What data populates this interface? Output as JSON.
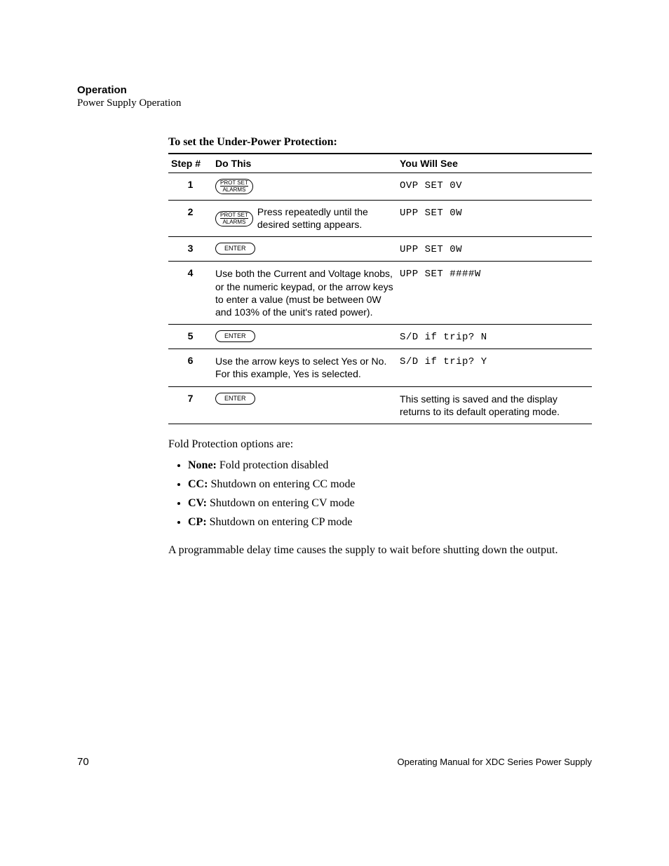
{
  "header": {
    "section_title": "Operation",
    "section_subtitle": "Power Supply Operation"
  },
  "procedure": {
    "title": "To set the Under-Power Protection:",
    "columns": {
      "step": "Step #",
      "do": "Do This",
      "see": "You Will See"
    },
    "key_labels": {
      "prot_set_top": "PROT SET",
      "prot_set_bottom": "ALARMS",
      "enter": "ENTER"
    },
    "rows": [
      {
        "step": "1",
        "see": "OVP SET 0V"
      },
      {
        "step": "2",
        "after_text": "Press repeatedly until the desired setting appears.",
        "see": "UPP SET 0W"
      },
      {
        "step": "3",
        "see": "UPP SET 0W"
      },
      {
        "step": "4",
        "instruction": "Use both the Current and Voltage knobs, or the numeric keypad, or the arrow keys to enter a value (must be between 0W and 103% of the unit's rated power).",
        "see": "UPP SET ####W"
      },
      {
        "step": "5",
        "see": "S/D if trip? N"
      },
      {
        "step": "6",
        "instruction": "Use the arrow keys to select Yes or No. For this example, Yes is selected.",
        "see": "S/D if trip? Y"
      },
      {
        "step": "7",
        "see_plain": "This setting is saved and the display returns to its default operating mode."
      }
    ]
  },
  "fold": {
    "intro": "Fold Protection options are:",
    "items": [
      {
        "label": "None:",
        "text": " Fold protection disabled"
      },
      {
        "label": "CC:",
        "text": " Shutdown on entering CC mode"
      },
      {
        "label": "CV:",
        "text": " Shutdown on entering CV mode"
      },
      {
        "label": "CP:",
        "text": " Shutdown on entering CP mode"
      }
    ],
    "trailer": "A programmable delay time causes the supply to wait before shutting down the output."
  },
  "footer": {
    "page_number": "70",
    "doc_title": "Operating Manual for XDC Series Power Supply"
  }
}
